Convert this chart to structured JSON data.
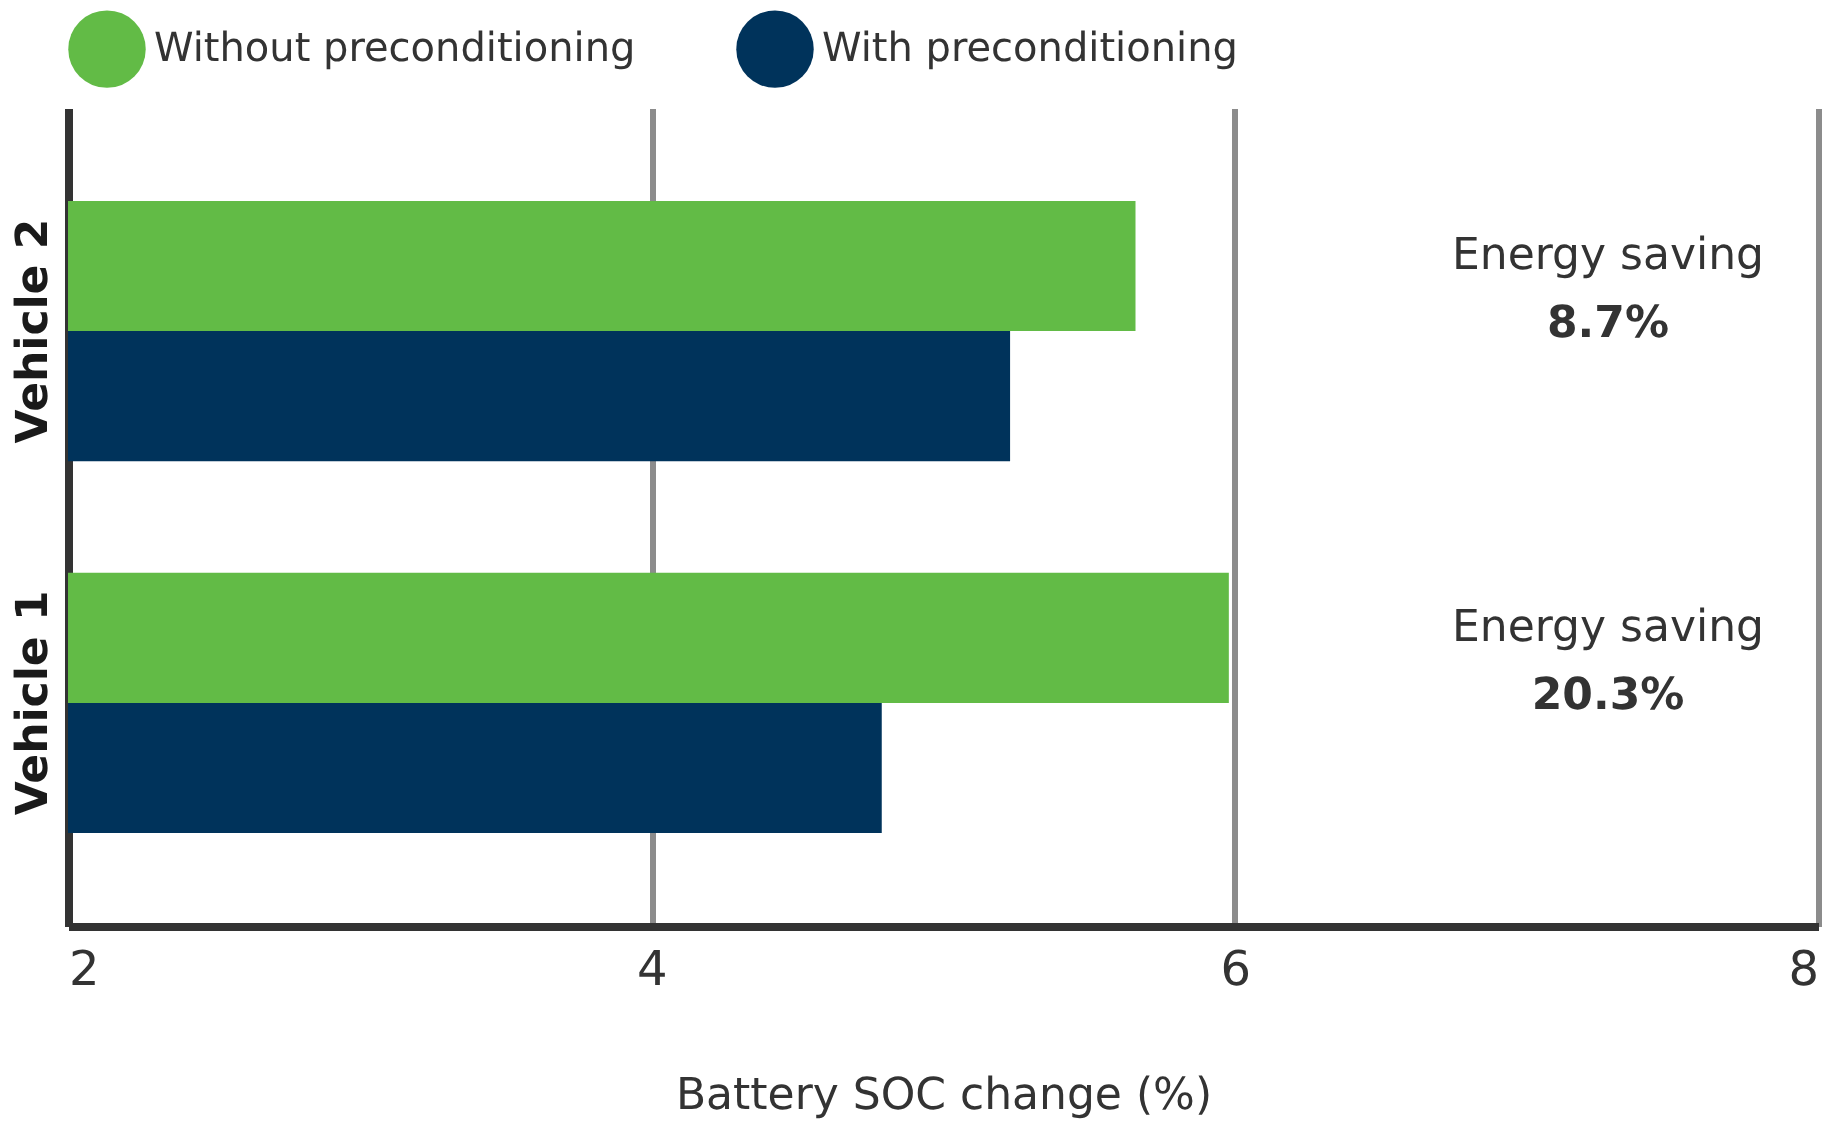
{
  "chart_data": {
    "type": "bar",
    "orientation": "horizontal",
    "xlabel": "Battery SOC change (%)",
    "categories": [
      "Vehicle 2",
      "Vehicle 1"
    ],
    "series": [
      {
        "name": "Without preconditioning",
        "color": "#62bb46",
        "values": [
          5.66,
          5.98
        ]
      },
      {
        "name": "With preconditioning",
        "color": "#00335b",
        "values": [
          5.23,
          4.79
        ]
      }
    ],
    "xlim": [
      2,
      8
    ],
    "xticks": [
      2,
      4,
      6,
      8
    ],
    "grid": "x",
    "legend": "top",
    "annotations": [
      "Energy saving",
      "8.7%",
      "Energy saving",
      "20.3%"
    ]
  }
}
